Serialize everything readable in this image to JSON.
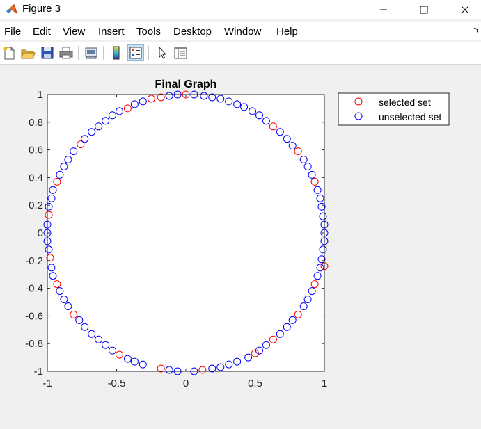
{
  "window": {
    "title": "Figure 3",
    "minimize_icon": "minimize-icon",
    "maximize_icon": "maximize-icon",
    "close_icon": "close-icon"
  },
  "menu": {
    "items": [
      {
        "label": "File"
      },
      {
        "label": "Edit"
      },
      {
        "label": "View"
      },
      {
        "label": "Insert"
      },
      {
        "label": "Tools"
      },
      {
        "label": "Desktop"
      },
      {
        "label": "Window"
      },
      {
        "label": "Help"
      }
    ]
  },
  "toolbar": {
    "buttons": [
      {
        "icon": "new-figure-icon"
      },
      {
        "icon": "open-file-icon"
      },
      {
        "icon": "save-icon"
      },
      {
        "icon": "print-icon"
      },
      {
        "icon": "link-plot-icon"
      },
      {
        "icon": "insert-colorbar-icon"
      },
      {
        "icon": "insert-legend-icon",
        "active": true
      },
      {
        "icon": "edit-plot-icon"
      },
      {
        "icon": "property-inspector-icon"
      }
    ]
  },
  "chart_data": {
    "type": "scatter",
    "title": "Final Graph",
    "xlabel": "",
    "ylabel": "",
    "xlim": [
      -1,
      1
    ],
    "ylim": [
      -1,
      1
    ],
    "xticks": [
      -1,
      -0.5,
      0,
      0.5,
      1
    ],
    "xtick_labels": [
      "-1",
      "-0.5",
      "0",
      "0.5",
      "1"
    ],
    "yticks": [
      -1,
      -0.8,
      -0.6,
      -0.4,
      -0.2,
      0,
      0.2,
      0.4,
      0.6,
      0.8,
      1
    ],
    "ytick_labels": [
      "-1",
      "-0.8",
      "-0.6",
      "-0.4",
      "-0.2",
      "0",
      "0.2",
      "0.4",
      "0.6",
      "0.8",
      "1"
    ],
    "grid": false,
    "legend_position": "outside-top-right",
    "marker": "circle",
    "series": [
      {
        "name": "selected set",
        "color": "#ff0000",
        "x": [
          0.0,
          0.63,
          0.81,
          0.93,
          1.0,
          0.93,
          0.81,
          0.63,
          0.5,
          0.12,
          -0.18,
          -0.48,
          -0.81,
          -0.93,
          -0.98,
          -0.99,
          -0.93,
          -0.76,
          -0.42,
          -0.25,
          -0.18
        ],
        "y": [
          1.0,
          0.77,
          0.59,
          0.37,
          -0.24,
          -0.37,
          -0.59,
          -0.77,
          -0.87,
          -0.99,
          -0.98,
          -0.88,
          -0.59,
          -0.37,
          -0.18,
          0.13,
          0.37,
          0.64,
          0.9,
          0.97,
          0.98
        ]
      },
      {
        "name": "unselected set",
        "color": "#0000ff",
        "x": [
          0.06,
          0.13,
          0.19,
          0.25,
          0.31,
          0.37,
          0.42,
          0.48,
          0.53,
          0.58,
          0.68,
          0.73,
          0.77,
          0.85,
          0.88,
          0.91,
          0.95,
          0.97,
          0.98,
          0.99,
          1.0,
          1.0,
          1.0,
          0.99,
          0.98,
          0.97,
          0.95,
          0.91,
          0.88,
          0.85,
          0.77,
          0.73,
          0.68,
          0.58,
          0.53,
          0.45,
          0.37,
          0.31,
          0.25,
          0.19,
          0.06,
          -0.06,
          -0.12,
          -0.31,
          -0.37,
          -0.42,
          -0.53,
          -0.58,
          -0.63,
          -0.68,
          -0.73,
          -0.77,
          -0.85,
          -0.88,
          -0.91,
          -0.96,
          -0.97,
          -0.99,
          -1.0,
          -1.0,
          -1.0,
          -0.99,
          -0.97,
          -0.96,
          -0.91,
          -0.88,
          -0.85,
          -0.81,
          -0.73,
          -0.68,
          -0.63,
          -0.58,
          -0.53,
          -0.48,
          -0.37,
          -0.31,
          -0.12,
          -0.06
        ],
        "y": [
          1.0,
          0.99,
          0.98,
          0.97,
          0.95,
          0.93,
          0.91,
          0.88,
          0.85,
          0.81,
          0.73,
          0.68,
          0.63,
          0.53,
          0.48,
          0.42,
          0.31,
          0.25,
          0.19,
          0.12,
          0.06,
          0.0,
          -0.06,
          -0.12,
          -0.19,
          -0.25,
          -0.31,
          -0.42,
          -0.48,
          -0.53,
          -0.63,
          -0.68,
          -0.73,
          -0.81,
          -0.85,
          -0.9,
          -0.93,
          -0.95,
          -0.97,
          -0.98,
          -1.0,
          -1.0,
          -0.99,
          -0.95,
          -0.93,
          -0.91,
          -0.85,
          -0.81,
          -0.77,
          -0.73,
          -0.68,
          -0.63,
          -0.53,
          -0.48,
          -0.42,
          -0.31,
          -0.25,
          -0.12,
          -0.06,
          0.0,
          0.06,
          0.19,
          0.25,
          0.31,
          0.42,
          0.48,
          0.53,
          0.59,
          0.68,
          0.73,
          0.77,
          0.81,
          0.85,
          0.88,
          0.93,
          0.95,
          0.99,
          1.0
        ]
      }
    ]
  }
}
